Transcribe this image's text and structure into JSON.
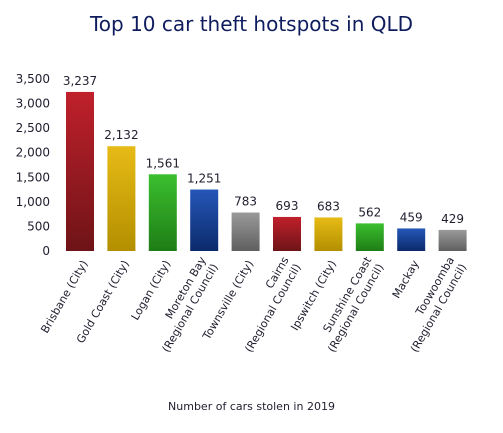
{
  "chart_data": {
    "type": "bar",
    "title": "Top 10 car theft hotspots in QLD",
    "subtitle": "Number of cars stolen in 2019",
    "ylim": [
      0,
      3500
    ],
    "yticks": [
      "3,500",
      "3,000",
      "2,500",
      "2,000",
      "1,500",
      "1,000",
      "500",
      "0"
    ],
    "ytick_values": [
      3500,
      3000,
      2500,
      2000,
      1500,
      1000,
      500,
      0
    ],
    "grid": false,
    "categories": [
      [
        "Brisbane (City)"
      ],
      [
        "Gold Coast (City)"
      ],
      [
        "Logan (City)"
      ],
      [
        "Moreton Bay",
        "(Regional Council)"
      ],
      [
        "Townsville (City)"
      ],
      [
        "Cairns",
        "(Regional Council)"
      ],
      [
        "Ipswitch (City)"
      ],
      [
        "Sunshine Coast",
        "(Regional Council)"
      ],
      [
        "Mackay"
      ],
      [
        "Toowoomba",
        "(Regional Council)"
      ]
    ],
    "values": [
      3237,
      2132,
      1561,
      1251,
      783,
      693,
      683,
      562,
      459,
      429
    ],
    "value_labels": [
      "3,237",
      "2,132",
      "1,561",
      "1,251",
      "783",
      "693",
      "683",
      "562",
      "459",
      "429"
    ],
    "colors": [
      [
        "#c0202b",
        "#6e1418"
      ],
      [
        "#e7bb16",
        "#b38f00"
      ],
      [
        "#3bbf2e",
        "#1e7d16"
      ],
      [
        "#2557b8",
        "#0b2a6b"
      ],
      [
        "#9a9a9a",
        "#5f5f5f"
      ],
      [
        "#c0202b",
        "#6e1418"
      ],
      [
        "#e7bb16",
        "#b38f00"
      ],
      [
        "#3bbf2e",
        "#1e7d16"
      ],
      [
        "#2557b8",
        "#0b2a6b"
      ],
      [
        "#9a9a9a",
        "#5f5f5f"
      ]
    ]
  }
}
